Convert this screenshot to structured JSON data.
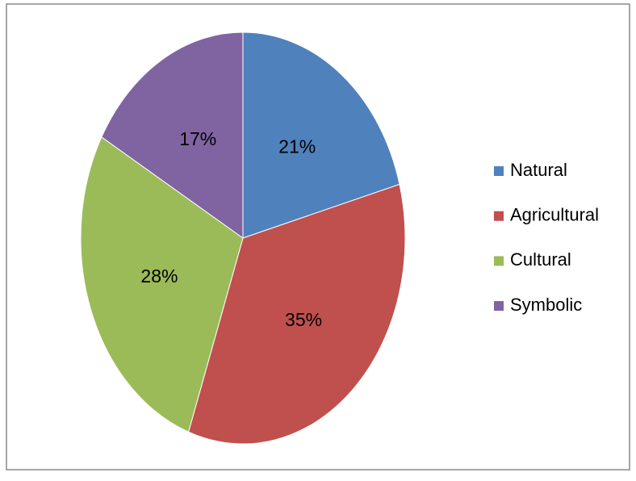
{
  "chart_data": {
    "type": "pie",
    "categories": [
      "Natural",
      "Agricultural",
      "Cultural",
      "Symbolic"
    ],
    "values": [
      21,
      35,
      28,
      17
    ],
    "value_labels": [
      "21%",
      "35%",
      "28%",
      "17%"
    ],
    "colors": [
      "#4f81bd",
      "#c0504d",
      "#9bbb59",
      "#8064a2"
    ],
    "legend": "right"
  }
}
